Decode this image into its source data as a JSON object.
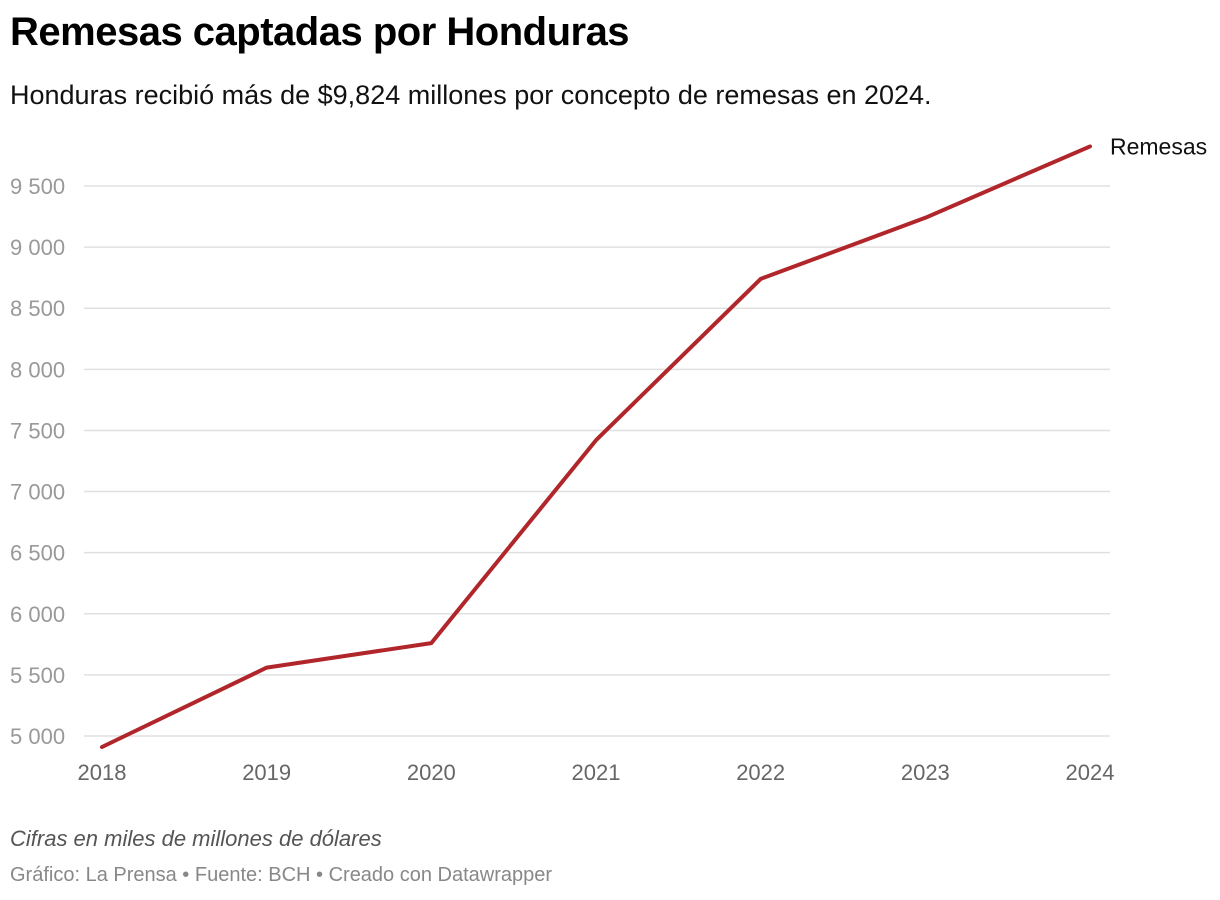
{
  "header": {
    "title": "Remesas captadas por Honduras",
    "subtitle": "Honduras recibió más de $9,824 millones por concepto de remesas en 2024."
  },
  "footer": {
    "note": "Cifras en miles de millones de dólares",
    "credits": "Gráfico: La Prensa • Fuente: BCH • Creado con Datawrapper"
  },
  "chart_data": {
    "type": "line",
    "title": "Remesas captadas por Honduras",
    "subtitle": "Honduras recibió más de $9,824 millones por concepto de remesas en 2024.",
    "xlabel": "",
    "ylabel": "",
    "x": [
      2018,
      2019,
      2020,
      2021,
      2022,
      2023,
      2024
    ],
    "x_tick_labels": [
      "2018",
      "2019",
      "2020",
      "2021",
      "2022",
      "2023",
      "2024"
    ],
    "series": [
      {
        "name": "Remesas",
        "values": [
          4910,
          5560,
          5760,
          7420,
          8740,
          9240,
          9824
        ]
      }
    ],
    "ylim": [
      4900,
      9900
    ],
    "y_ticks": [
      5000,
      5500,
      6000,
      6500,
      7000,
      7500,
      8000,
      8500,
      9000,
      9500
    ],
    "y_tick_labels": [
      "5 000",
      "5 500",
      "6 000",
      "6 500",
      "7 000",
      "7 500",
      "8 000",
      "8 500",
      "9 000",
      "9 500"
    ],
    "grid": true,
    "legend": "direct label at line end",
    "colors": {
      "line": "#b1262b",
      "grid": "#e0e0e0",
      "tick_y": "#999999",
      "tick_x": "#666666"
    }
  }
}
